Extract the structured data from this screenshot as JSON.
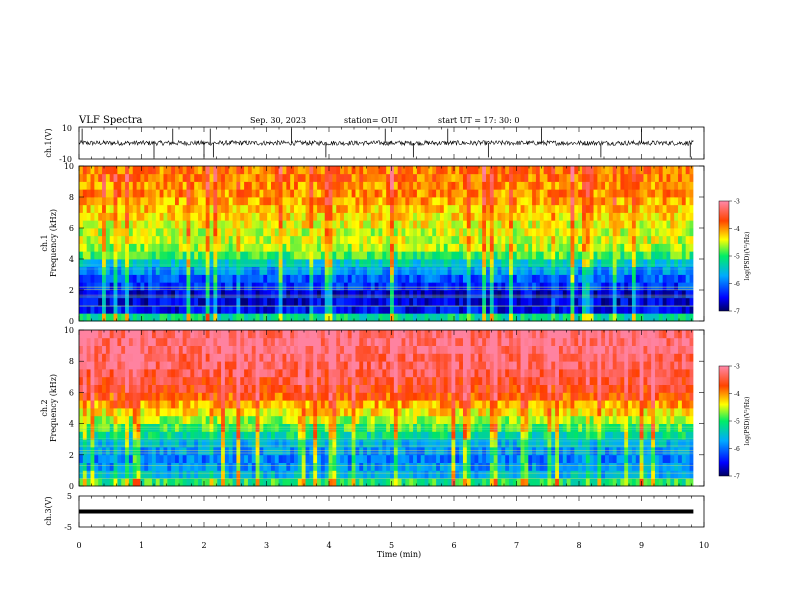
{
  "header": {
    "title": "VLF Spectra",
    "date": "Sep. 30, 2023",
    "station": "station= OUI",
    "start": "start  UT =   17: 30: 0"
  },
  "panels": {
    "ch1_wave": {
      "ylabel": "ch.1(V)",
      "ytick_top": "10",
      "ytick_bottom": "-10"
    },
    "ch1_spec": {
      "ylabel_line1": "ch.1",
      "ylabel_line2": "Frequency (kHz)"
    },
    "ch2_spec": {
      "ylabel_line1": "ch.2",
      "ylabel_line2": "Frequency (kHz)"
    },
    "ch3_wave": {
      "ylabel": "ch.3(V)",
      "ytick_top": "5",
      "ytick_bottom": "-5"
    }
  },
  "xaxis": {
    "label": "Time  (min)"
  },
  "colorbar": {
    "ticks": [
      "-3",
      "-4",
      "-5",
      "-6",
      "-7"
    ],
    "label": "log(PSD)(V²/Hz)"
  },
  "colors": {
    "red": "#ff2200",
    "orange": "#ff8800",
    "yellow": "#ffee00",
    "green": "#44dd44",
    "cyan": "#00ccff",
    "blue": "#0033cc",
    "navy": "#001a80"
  },
  "chart_data": [
    {
      "type": "line",
      "name": "ch1_waveform",
      "xlabel": "Time (min)",
      "ylabel": "ch.1(V)",
      "xlim": [
        0,
        10
      ],
      "ylim": [
        -10,
        10
      ],
      "data_end_min": 9.83,
      "baseline_v": 0,
      "typical_amplitude_v": 1.5,
      "spikes_min": [
        0.05,
        1.2,
        1.5,
        2.0,
        2.1,
        2.15,
        3.4,
        3.95,
        4.9,
        5.35,
        5.9,
        6.55,
        7.4,
        8.35,
        9.0,
        9.78
      ]
    },
    {
      "type": "heatmap",
      "name": "ch1_spectrogram",
      "xlabel": "Time (min)",
      "ylabel": "Frequency (kHz)",
      "xlim": [
        0,
        10
      ],
      "ylim": [
        0,
        10
      ],
      "yticks": [
        0,
        2,
        4,
        6,
        8,
        10
      ],
      "clim": [
        -7,
        -3
      ],
      "colorbar_label": "log(PSD)(V²/Hz)",
      "freq_profile_khz": [
        0.25,
        0.75,
        1.25,
        1.75,
        2.25,
        2.75,
        3.25,
        3.75,
        4.25,
        4.75,
        5.25,
        5.75,
        6.25,
        6.75,
        7.25,
        7.75,
        8.25,
        8.75,
        9.25,
        9.75
      ],
      "typical_log_psd": [
        -5.2,
        -6.5,
        -6.6,
        -6.6,
        -6.3,
        -6.1,
        -5.8,
        -5.4,
        -4.9,
        -4.6,
        -4.5,
        -4.5,
        -4.4,
        -4.3,
        -4.2,
        -4.1,
        -4.0,
        -4.0,
        -3.9,
        -3.9
      ]
    },
    {
      "type": "heatmap",
      "name": "ch2_spectrogram",
      "xlabel": "Time (min)",
      "ylabel": "Frequency (kHz)",
      "xlim": [
        0,
        10
      ],
      "ylim": [
        0,
        10
      ],
      "yticks": [
        0,
        2,
        4,
        6,
        8,
        10
      ],
      "clim": [
        -7,
        -3
      ],
      "colorbar_label": "log(PSD)(V²/Hz)",
      "freq_profile_khz": [
        0.25,
        0.75,
        1.25,
        1.75,
        2.25,
        2.75,
        3.25,
        3.75,
        4.25,
        4.75,
        5.25,
        5.75,
        6.25,
        6.75,
        7.25,
        7.75,
        8.25,
        8.75,
        9.25,
        9.75
      ],
      "typical_log_psd": [
        -5.0,
        -5.6,
        -5.8,
        -5.9,
        -5.8,
        -5.6,
        -5.2,
        -4.9,
        -4.6,
        -4.3,
        -4.1,
        -3.8,
        -3.6,
        -3.5,
        -3.4,
        -3.3,
        -3.3,
        -3.2,
        -3.2,
        -3.2
      ]
    },
    {
      "type": "line",
      "name": "ch3_waveform",
      "xlabel": "Time (min)",
      "ylabel": "ch.3(V)",
      "xlim": [
        0,
        10
      ],
      "ylim": [
        -5,
        5
      ],
      "data_end_min": 9.83,
      "constant_v": 0,
      "xticks": [
        0,
        1,
        2,
        3,
        4,
        5,
        6,
        7,
        8,
        9,
        10
      ]
    }
  ]
}
